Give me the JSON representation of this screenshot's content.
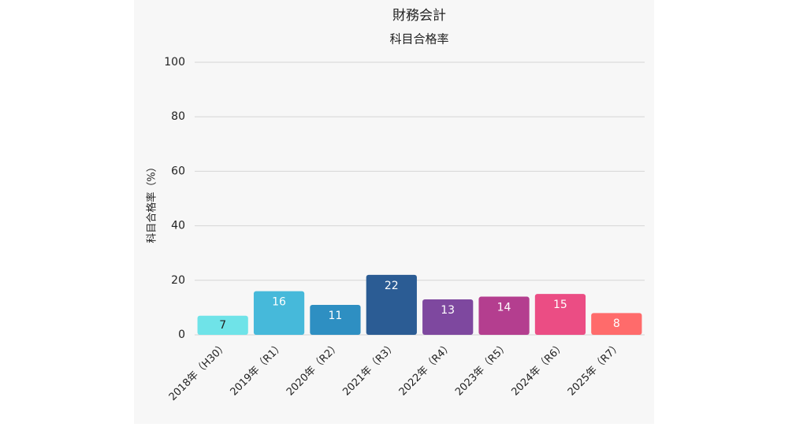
{
  "chart_data": {
    "type": "bar",
    "title": "財務会計",
    "subtitle": "科目合格率",
    "y_label": "科目合格率（%）",
    "categories": [
      "2018年（H30）",
      "2019年（R1）",
      "2020年（R2）",
      "2021年（R3）",
      "2022年（R4）",
      "2023年（R5）",
      "2024年（R6）",
      "2025年（R7）"
    ],
    "values": [
      7,
      16,
      11,
      22,
      13,
      14,
      15,
      8
    ],
    "colors": [
      "#6fe3e8",
      "#46b9da",
      "#2e8fc2",
      "#2b5c94",
      "#7e489f",
      "#b43e8f",
      "#eb4d84",
      "#ff6b6b"
    ],
    "ylim": [
      0,
      100
    ],
    "yticks": [
      0,
      20,
      40,
      60,
      80,
      100
    ],
    "grid": true
  }
}
